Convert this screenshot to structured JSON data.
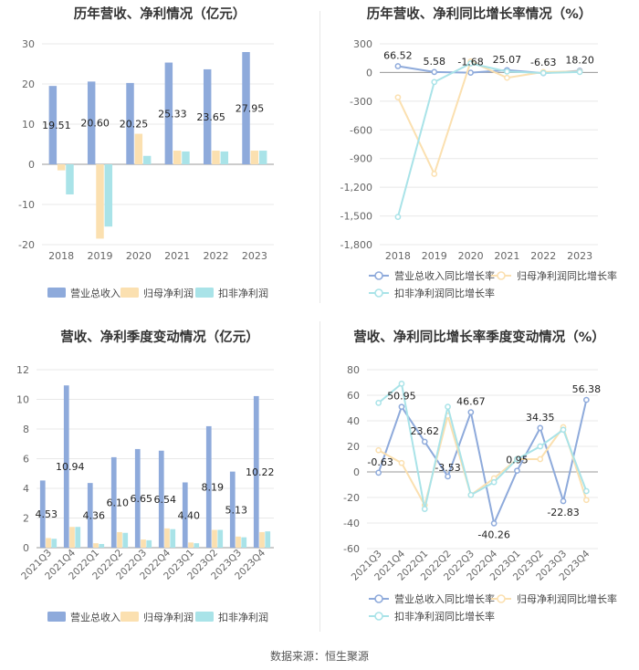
{
  "source": "数据来源：恒生聚源",
  "colors": {
    "revenue": "#8eaadb",
    "parent": "#fbe0b0",
    "deducted": "#a9e3e8"
  },
  "chart_data": [
    {
      "type": "bar",
      "title": "历年营收、净利情况（亿元）",
      "categories": [
        "2018",
        "2019",
        "2020",
        "2021",
        "2022",
        "2023"
      ],
      "series": [
        {
          "name": "营业总收入",
          "values": [
            19.51,
            20.6,
            20.25,
            25.33,
            23.65,
            27.95
          ],
          "labels": [
            "19.51",
            "20.60",
            "20.25",
            "25.33",
            "23.65",
            "27.95"
          ]
        },
        {
          "name": "归母净利润",
          "values": [
            -1.5,
            -18.5,
            7.6,
            3.4,
            3.4,
            3.4
          ]
        },
        {
          "name": "扣非净利润",
          "values": [
            -7.5,
            -15.5,
            2.1,
            3.2,
            3.2,
            3.4
          ]
        }
      ],
      "ylim": [
        -20,
        30
      ],
      "yticks": [
        "30",
        "20",
        "10",
        "0",
        "-10",
        "-20"
      ],
      "grid": true,
      "legend": "bottom"
    },
    {
      "type": "line",
      "title": "历年营收、净利同比增长率情况（%）",
      "categories": [
        "2018",
        "2019",
        "2020",
        "2021",
        "2022",
        "2023"
      ],
      "series": [
        {
          "name": "营业总收入同比增长率",
          "values": [
            66.52,
            5.58,
            -1.68,
            25.07,
            -6.63,
            18.2
          ],
          "labels": [
            "66.52",
            "5.58",
            "-1.68",
            "25.07",
            "-6.63",
            "18.20"
          ]
        },
        {
          "name": "归母净利润同比增长率",
          "values": [
            -260,
            -1060,
            115,
            -55,
            5,
            10
          ]
        },
        {
          "name": "扣非净利润同比增长率",
          "values": [
            -1510,
            -100,
            95,
            10,
            -5,
            5
          ]
        }
      ],
      "ylim": [
        -1800,
        300
      ],
      "yticks": [
        "300",
        "0",
        "-300",
        "-600",
        "-900",
        "-1,200",
        "-1,500",
        "-1,800"
      ],
      "grid": true,
      "legend": "bottom"
    },
    {
      "type": "bar",
      "title": "营收、净利季度变动情况（亿元）",
      "categories": [
        "2021Q3",
        "2021Q4",
        "2022Q1",
        "2022Q2",
        "2022Q3",
        "2022Q4",
        "2023Q1",
        "2023Q2",
        "2023Q3",
        "2023Q4"
      ],
      "series": [
        {
          "name": "营业总收入",
          "values": [
            4.53,
            10.94,
            4.36,
            6.1,
            6.65,
            6.54,
            4.4,
            8.19,
            5.13,
            10.22
          ],
          "labels": [
            "4.53",
            "10.94",
            "4.36",
            "6.10",
            "6.65",
            "6.54",
            "4.40",
            "8.19",
            "5.13",
            "10.22"
          ]
        },
        {
          "name": "归母净利润",
          "values": [
            0.65,
            1.4,
            0.3,
            1.05,
            0.55,
            1.3,
            0.35,
            1.2,
            0.75,
            1.05
          ]
        },
        {
          "name": "扣非净利润",
          "values": [
            0.6,
            1.4,
            0.25,
            1.0,
            0.5,
            1.25,
            0.3,
            1.2,
            0.7,
            1.1
          ]
        }
      ],
      "ylim": [
        0,
        12
      ],
      "yticks": [
        "12",
        "10",
        "8",
        "6",
        "4",
        "2",
        "0"
      ],
      "grid": true,
      "legend": "bottom"
    },
    {
      "type": "line",
      "title": "营收、净利同比增长率季度变动情况（%）",
      "categories": [
        "2021Q3",
        "2021Q4",
        "2022Q1",
        "2022Q2",
        "2022Q3",
        "2022Q4",
        "2023Q1",
        "2023Q2",
        "2023Q3",
        "2023Q4"
      ],
      "series": [
        {
          "name": "营业总收入同比增长率",
          "values": [
            -0.63,
            50.95,
            23.62,
            -3.53,
            46.67,
            -40.26,
            0.95,
            34.35,
            -22.83,
            56.38
          ],
          "labels": [
            "-0.63",
            "50.95",
            "23.62",
            "-3.53",
            "46.67",
            "-40.26",
            "0.95",
            "34.35",
            "-22.83",
            "56.38"
          ]
        },
        {
          "name": "归母净利润同比增长率",
          "values": [
            17,
            7,
            -26,
            44,
            -18,
            -5,
            10,
            10,
            35,
            -22
          ]
        },
        {
          "name": "扣非净利润同比增长率",
          "values": [
            54,
            69,
            -29,
            51,
            -18,
            -8,
            10,
            20,
            33,
            -15
          ]
        }
      ],
      "ylim": [
        -60,
        80
      ],
      "yticks": [
        "80",
        "60",
        "40",
        "20",
        "0",
        "-20",
        "-40",
        "-60"
      ],
      "grid": true,
      "legend": "bottom"
    }
  ]
}
